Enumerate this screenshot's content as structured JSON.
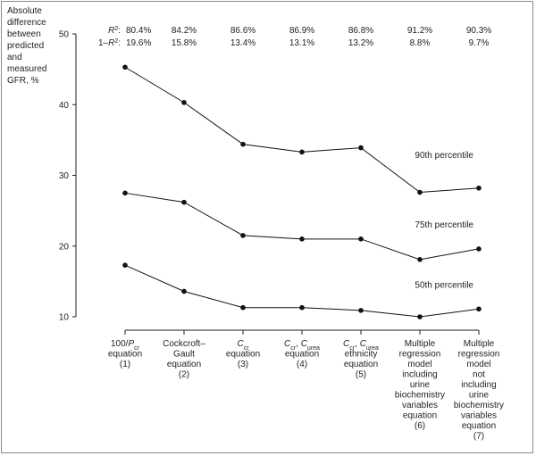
{
  "chart_data": {
    "type": "line",
    "ylabel_lines": [
      "Absolute",
      "difference",
      "between",
      "predicted",
      "and",
      "measured",
      "GFR, %"
    ],
    "ylim": [
      10,
      50
    ],
    "yticks": [
      10,
      20,
      30,
      40,
      50
    ],
    "categories": [
      {
        "lines": [
          {
            "t": [
              [
                "100/",
                ""
              ],
              [
                "P",
                "i"
              ],
              [
                "cr",
                "sub"
              ]
            ]
          },
          {
            "t": [
              [
                "equation",
                ""
              ]
            ]
          },
          {
            "t": [
              [
                "(1)",
                ""
              ]
            ]
          }
        ]
      },
      {
        "lines": [
          {
            "t": [
              [
                "Cockcroft–",
                ""
              ]
            ]
          },
          {
            "t": [
              [
                "Gault",
                ""
              ]
            ]
          },
          {
            "t": [
              [
                "equation",
                ""
              ]
            ]
          },
          {
            "t": [
              [
                "(2)",
                ""
              ]
            ]
          }
        ]
      },
      {
        "lines": [
          {
            "t": [
              [
                "C",
                "i"
              ],
              [
                "cr",
                "sub"
              ]
            ]
          },
          {
            "t": [
              [
                "equation",
                ""
              ]
            ]
          },
          {
            "t": [
              [
                "(3)",
                ""
              ]
            ]
          }
        ]
      },
      {
        "lines": [
          {
            "t": [
              [
                "C",
                "i"
              ],
              [
                "cr",
                "sub"
              ],
              [
                ", ",
                ""
              ],
              [
                "C",
                "i"
              ],
              [
                "urea",
                "sub"
              ]
            ]
          },
          {
            "t": [
              [
                "equation",
                ""
              ]
            ]
          },
          {
            "t": [
              [
                "(4)",
                ""
              ]
            ]
          }
        ]
      },
      {
        "lines": [
          {
            "t": [
              [
                "C",
                "i"
              ],
              [
                "cr",
                "sub"
              ],
              [
                ", ",
                ""
              ],
              [
                "C",
                "i"
              ],
              [
                "urea",
                "sub"
              ]
            ]
          },
          {
            "t": [
              [
                "ethnicity",
                ""
              ]
            ]
          },
          {
            "t": [
              [
                "equation",
                ""
              ]
            ]
          },
          {
            "t": [
              [
                "(5)",
                ""
              ]
            ]
          }
        ]
      },
      {
        "lines": [
          {
            "t": [
              [
                "Multiple",
                ""
              ]
            ]
          },
          {
            "t": [
              [
                "regression",
                ""
              ]
            ]
          },
          {
            "t": [
              [
                "model",
                ""
              ]
            ]
          },
          {
            "t": [
              [
                "including",
                ""
              ]
            ]
          },
          {
            "t": [
              [
                "urine",
                ""
              ]
            ]
          },
          {
            "t": [
              [
                "biochemistry",
                ""
              ]
            ]
          },
          {
            "t": [
              [
                "variables",
                ""
              ]
            ]
          },
          {
            "t": [
              [
                "equation",
                ""
              ]
            ]
          },
          {
            "t": [
              [
                "(6)",
                ""
              ]
            ]
          }
        ]
      },
      {
        "lines": [
          {
            "t": [
              [
                "Multiple",
                ""
              ]
            ]
          },
          {
            "t": [
              [
                "regression",
                ""
              ]
            ]
          },
          {
            "t": [
              [
                "model",
                ""
              ]
            ]
          },
          {
            "t": [
              [
                "not",
                ""
              ]
            ]
          },
          {
            "t": [
              [
                "including",
                ""
              ]
            ]
          },
          {
            "t": [
              [
                "urine",
                ""
              ]
            ]
          },
          {
            "t": [
              [
                "biochemistry",
                ""
              ]
            ]
          },
          {
            "t": [
              [
                "variables",
                ""
              ]
            ]
          },
          {
            "t": [
              [
                "equation",
                ""
              ]
            ]
          },
          {
            "t": [
              [
                "(7)",
                ""
              ]
            ]
          }
        ]
      }
    ],
    "series": [
      {
        "name": "90th percentile",
        "values": [
          45.3,
          40.3,
          34.4,
          33.3,
          33.9,
          27.6,
          28.2
        ]
      },
      {
        "name": "75th percentile",
        "values": [
          27.5,
          26.2,
          21.5,
          21.0,
          21.0,
          18.1,
          19.6
        ]
      },
      {
        "name": "50th percentile",
        "values": [
          17.3,
          13.6,
          11.3,
          11.3,
          10.9,
          10.0,
          11.1
        ]
      }
    ],
    "r2_label": [
      [
        "R",
        "i"
      ],
      [
        "2",
        "sup"
      ],
      [
        ":",
        ""
      ]
    ],
    "one_minus_r2_label": [
      [
        "1–",
        ""
      ],
      [
        "R",
        "i"
      ],
      [
        "2",
        "sup"
      ],
      [
        ":",
        ""
      ]
    ],
    "r2_values": [
      "80.4%",
      "84.2%",
      "86.6%",
      "86.9%",
      "86.8%",
      "91.2%",
      "90.3%"
    ],
    "one_minus_r2_values": [
      "19.6%",
      "15.8%",
      "13.4%",
      "13.1%",
      "13.2%",
      "8.8%",
      "9.7%"
    ],
    "grid": false,
    "legend": "inline labels at right"
  }
}
